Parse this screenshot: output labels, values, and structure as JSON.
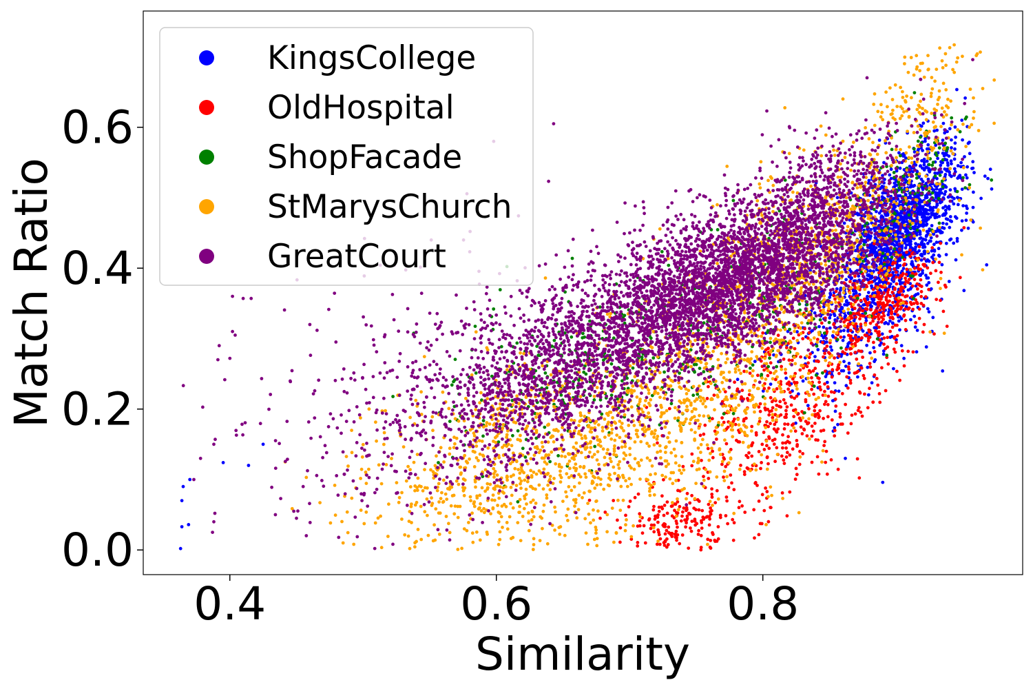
{
  "chart_data": {
    "type": "scatter",
    "title": "",
    "xlabel": "Similarity",
    "ylabel": "Match Ratio",
    "xlim": [
      0.335,
      0.995
    ],
    "ylim": [
      -0.035,
      0.765
    ],
    "xticks": [
      0.4,
      0.6,
      0.8
    ],
    "xtick_labels": [
      "0.4",
      "0.6",
      "0.8"
    ],
    "yticks": [
      0.0,
      0.2,
      0.4,
      0.6
    ],
    "ytick_labels": [
      "0.0",
      "0.2",
      "0.4",
      "0.6"
    ],
    "grid": false,
    "legend_position": "top-left",
    "series": [
      {
        "name": "KingsCollege",
        "color": "#0000ff",
        "clusters": [
          {
            "cx": 0.905,
            "cy": 0.46,
            "sx": 0.022,
            "sy": 0.06,
            "r": 0.55,
            "n": 1500
          },
          {
            "cx": 0.87,
            "cy": 0.33,
            "sx": 0.03,
            "sy": 0.06,
            "r": 0.45,
            "n": 350
          }
        ],
        "points": [
          {
            "x": 0.363,
            "y": 0.002
          },
          {
            "x": 0.364,
            "y": 0.033
          },
          {
            "x": 0.369,
            "y": 0.036
          },
          {
            "x": 0.364,
            "y": 0.07
          },
          {
            "x": 0.365,
            "y": 0.09
          },
          {
            "x": 0.37,
            "y": 0.1
          },
          {
            "x": 0.395,
            "y": 0.124
          },
          {
            "x": 0.414,
            "y": 0.12
          },
          {
            "x": 0.425,
            "y": 0.15
          },
          {
            "x": 0.89,
            "y": 0.096
          }
        ]
      },
      {
        "name": "OldHospital",
        "color": "#ff0000",
        "clusters": [
          {
            "cx": 0.735,
            "cy": 0.03,
            "sx": 0.022,
            "sy": 0.028,
            "r": 0.0,
            "n": 180
          },
          {
            "cx": 0.82,
            "cy": 0.2,
            "sx": 0.04,
            "sy": 0.08,
            "r": 0.6,
            "n": 550
          },
          {
            "cx": 0.89,
            "cy": 0.35,
            "sx": 0.02,
            "sy": 0.04,
            "r": 0.5,
            "n": 350
          }
        ],
        "points": []
      },
      {
        "name": "ShopFacade",
        "color": "#008000",
        "clusters": [
          {
            "cx": 0.67,
            "cy": 0.26,
            "sx": 0.06,
            "sy": 0.06,
            "r": 0.5,
            "n": 300
          },
          {
            "cx": 0.8,
            "cy": 0.35,
            "sx": 0.06,
            "sy": 0.08,
            "r": 0.6,
            "n": 250
          },
          {
            "cx": 0.91,
            "cy": 0.52,
            "sx": 0.02,
            "sy": 0.05,
            "r": 0.5,
            "n": 120
          }
        ],
        "points": []
      },
      {
        "name": "StMarysChurch",
        "color": "#ffa500",
        "clusters": [
          {
            "cx": 0.62,
            "cy": 0.13,
            "sx": 0.06,
            "sy": 0.07,
            "r": 0.3,
            "n": 900
          },
          {
            "cx": 0.75,
            "cy": 0.22,
            "sx": 0.05,
            "sy": 0.09,
            "r": 0.4,
            "n": 700
          },
          {
            "cx": 0.84,
            "cy": 0.42,
            "sx": 0.05,
            "sy": 0.09,
            "r": 0.6,
            "n": 900
          },
          {
            "cx": 0.92,
            "cy": 0.64,
            "sx": 0.025,
            "sy": 0.045,
            "r": 0.4,
            "n": 120
          }
        ],
        "points": [
          {
            "x": 0.535,
            "y": 0.002
          },
          {
            "x": 0.54,
            "y": 0.012
          },
          {
            "x": 0.485,
            "y": 0.01
          },
          {
            "x": 0.493,
            "y": 0.008
          },
          {
            "x": 0.965,
            "y": 0.655
          },
          {
            "x": 0.955,
            "y": 0.6
          }
        ]
      },
      {
        "name": "GreatCourt",
        "color": "#800080",
        "clusters": [
          {
            "cx": 0.66,
            "cy": 0.27,
            "sx": 0.06,
            "sy": 0.07,
            "r": 0.5,
            "n": 1600
          },
          {
            "cx": 0.77,
            "cy": 0.38,
            "sx": 0.05,
            "sy": 0.06,
            "r": 0.5,
            "n": 2600
          },
          {
            "cx": 0.84,
            "cy": 0.46,
            "sx": 0.04,
            "sy": 0.07,
            "r": 0.5,
            "n": 1100
          },
          {
            "cx": 0.56,
            "cy": 0.2,
            "sx": 0.07,
            "sy": 0.1,
            "r": 0.2,
            "n": 450
          }
        ],
        "points": [
          {
            "x": 0.387,
            "y": 0.025
          },
          {
            "x": 0.388,
            "y": 0.04
          },
          {
            "x": 0.373,
            "y": 0.1
          },
          {
            "x": 0.378,
            "y": 0.13
          },
          {
            "x": 0.388,
            "y": 0.15
          },
          {
            "x": 0.389,
            "y": 0.157
          },
          {
            "x": 0.391,
            "y": 0.27
          },
          {
            "x": 0.4,
            "y": 0.272
          },
          {
            "x": 0.392,
            "y": 0.29
          },
          {
            "x": 0.402,
            "y": 0.31
          },
          {
            "x": 0.404,
            "y": 0.305
          },
          {
            "x": 0.402,
            "y": 0.36
          },
          {
            "x": 0.41,
            "y": 0.357
          },
          {
            "x": 0.416,
            "y": 0.357
          },
          {
            "x": 0.448,
            "y": 0.055
          },
          {
            "x": 0.45,
            "y": 0.045
          },
          {
            "x": 0.455,
            "y": 0.09
          },
          {
            "x": 0.46,
            "y": 0.32
          },
          {
            "x": 0.643,
            "y": 0.605
          },
          {
            "x": 0.598,
            "y": 0.58
          }
        ]
      }
    ]
  }
}
